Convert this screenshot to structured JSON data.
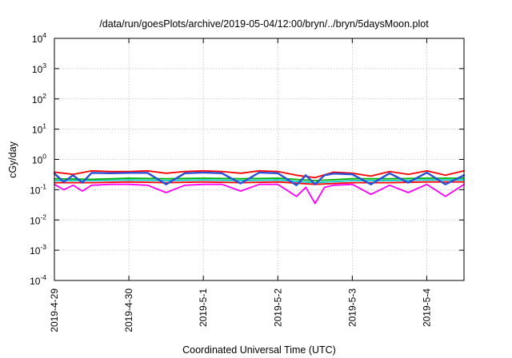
{
  "chart_data": {
    "type": "line",
    "title": "/data/run/goesPlots/archive/2019-05-04/12:00/bryn/../bryn/5daysMoon.plot",
    "xlabel": "Coordinated Universal Time (UTC)",
    "ylabel": "cGy/day",
    "yscale": "log",
    "ylim": [
      0.0001,
      10000
    ],
    "yticks": [
      {
        "value": 10000,
        "base": "10",
        "exp": "4"
      },
      {
        "value": 1000,
        "base": "10",
        "exp": "3"
      },
      {
        "value": 100,
        "base": "10",
        "exp": "2"
      },
      {
        "value": 10,
        "base": "10",
        "exp": "1"
      },
      {
        "value": 1,
        "base": "10",
        "exp": "0"
      },
      {
        "value": 0.1,
        "base": "10",
        "exp": "-1"
      },
      {
        "value": 0.01,
        "base": "10",
        "exp": "-2"
      },
      {
        "value": 0.001,
        "base": "10",
        "exp": "-3"
      },
      {
        "value": 0.0001,
        "base": "10",
        "exp": "-4"
      }
    ],
    "xlim": [
      "2019-04-29",
      "2019-05-04T12:00"
    ],
    "xticks": [
      {
        "value": "2019-04-29",
        "label": "2019-4-29"
      },
      {
        "value": "2019-04-30",
        "label": "2019-4-30"
      },
      {
        "value": "2019-05-01",
        "label": "2019-5-1"
      },
      {
        "value": "2019-05-02",
        "label": "2019-5-2"
      },
      {
        "value": "2019-05-03",
        "label": "2019-5-3"
      },
      {
        "value": "2019-05-04",
        "label": "2019-5-4"
      }
    ],
    "grid": true,
    "legend": "none",
    "series": [
      {
        "color": "#ff00ff",
        "values": [
          [
            "2019-04-29T00:00",
            0.15
          ],
          [
            "2019-04-29T03:00",
            0.1
          ],
          [
            "2019-04-29T06:00",
            0.14
          ],
          [
            "2019-04-29T09:00",
            0.09
          ],
          [
            "2019-04-29T12:00",
            0.14
          ],
          [
            "2019-04-29T18:00",
            0.15
          ],
          [
            "2019-04-30T00:00",
            0.15
          ],
          [
            "2019-04-30T06:00",
            0.14
          ],
          [
            "2019-04-30T12:00",
            0.08
          ],
          [
            "2019-04-30T18:00",
            0.14
          ],
          [
            "2019-05-01T00:00",
            0.15
          ],
          [
            "2019-05-01T06:00",
            0.15
          ],
          [
            "2019-05-01T12:00",
            0.09
          ],
          [
            "2019-05-01T18:00",
            0.15
          ],
          [
            "2019-05-02T00:00",
            0.15
          ],
          [
            "2019-05-02T06:00",
            0.06
          ],
          [
            "2019-05-02T09:00",
            0.12
          ],
          [
            "2019-05-02T12:00",
            0.035
          ],
          [
            "2019-05-02T15:00",
            0.12
          ],
          [
            "2019-05-02T18:00",
            0.14
          ],
          [
            "2019-05-03T00:00",
            0.15
          ],
          [
            "2019-05-03T06:00",
            0.07
          ],
          [
            "2019-05-03T12:00",
            0.14
          ],
          [
            "2019-05-03T18:00",
            0.08
          ],
          [
            "2019-05-04T00:00",
            0.15
          ],
          [
            "2019-05-04T06:00",
            0.06
          ],
          [
            "2019-05-04T12:00",
            0.15
          ]
        ]
      },
      {
        "color": "#ff0000",
        "values": [
          [
            "2019-04-29T00:00",
            0.17
          ],
          [
            "2019-04-29T12:00",
            0.17
          ],
          [
            "2019-04-30T00:00",
            0.18
          ],
          [
            "2019-04-30T12:00",
            0.17
          ],
          [
            "2019-05-01T00:00",
            0.18
          ],
          [
            "2019-05-01T12:00",
            0.17
          ],
          [
            "2019-05-02T00:00",
            0.18
          ],
          [
            "2019-05-02T12:00",
            0.15
          ],
          [
            "2019-05-03T00:00",
            0.17
          ],
          [
            "2019-05-03T12:00",
            0.17
          ],
          [
            "2019-05-04T00:00",
            0.18
          ],
          [
            "2019-05-04T12:00",
            0.18
          ]
        ]
      },
      {
        "color": "#00c8c8",
        "values": [
          [
            "2019-04-29T00:00",
            0.2
          ],
          [
            "2019-04-29T12:00",
            0.2
          ],
          [
            "2019-04-30T00:00",
            0.21
          ],
          [
            "2019-04-30T12:00",
            0.2
          ],
          [
            "2019-05-01T00:00",
            0.21
          ],
          [
            "2019-05-01T12:00",
            0.2
          ],
          [
            "2019-05-02T00:00",
            0.21
          ],
          [
            "2019-05-02T12:00",
            0.17
          ],
          [
            "2019-05-03T00:00",
            0.2
          ],
          [
            "2019-05-03T12:00",
            0.2
          ],
          [
            "2019-05-04T00:00",
            0.21
          ],
          [
            "2019-05-04T12:00",
            0.21
          ]
        ]
      },
      {
        "color": "#00b000",
        "values": [
          [
            "2019-04-29T00:00",
            0.23
          ],
          [
            "2019-04-29T12:00",
            0.22
          ],
          [
            "2019-04-30T00:00",
            0.24
          ],
          [
            "2019-04-30T12:00",
            0.23
          ],
          [
            "2019-05-01T00:00",
            0.24
          ],
          [
            "2019-05-01T12:00",
            0.23
          ],
          [
            "2019-05-02T00:00",
            0.24
          ],
          [
            "2019-05-02T12:00",
            0.2
          ],
          [
            "2019-05-03T00:00",
            0.23
          ],
          [
            "2019-05-03T12:00",
            0.23
          ],
          [
            "2019-05-04T00:00",
            0.24
          ],
          [
            "2019-05-04T12:00",
            0.24
          ]
        ]
      },
      {
        "color": "#ff0000",
        "values": [
          [
            "2019-04-29T00:00",
            0.38
          ],
          [
            "2019-04-29T06:00",
            0.32
          ],
          [
            "2019-04-29T12:00",
            0.42
          ],
          [
            "2019-04-29T18:00",
            0.4
          ],
          [
            "2019-04-30T00:00",
            0.4
          ],
          [
            "2019-04-30T06:00",
            0.42
          ],
          [
            "2019-04-30T12:00",
            0.35
          ],
          [
            "2019-04-30T18:00",
            0.4
          ],
          [
            "2019-05-01T00:00",
            0.42
          ],
          [
            "2019-05-01T06:00",
            0.4
          ],
          [
            "2019-05-01T12:00",
            0.35
          ],
          [
            "2019-05-01T18:00",
            0.42
          ],
          [
            "2019-05-02T00:00",
            0.4
          ],
          [
            "2019-05-02T06:00",
            0.3
          ],
          [
            "2019-05-02T12:00",
            0.25
          ],
          [
            "2019-05-02T18:00",
            0.38
          ],
          [
            "2019-05-03T00:00",
            0.35
          ],
          [
            "2019-05-03T06:00",
            0.28
          ],
          [
            "2019-05-03T12:00",
            0.4
          ],
          [
            "2019-05-03T18:00",
            0.32
          ],
          [
            "2019-05-04T00:00",
            0.42
          ],
          [
            "2019-05-04T06:00",
            0.3
          ],
          [
            "2019-05-04T12:00",
            0.42
          ]
        ]
      },
      {
        "color": "#2b4fd8",
        "values": [
          [
            "2019-04-29T00:00",
            0.34
          ],
          [
            "2019-04-29T03:00",
            0.18
          ],
          [
            "2019-04-29T06:00",
            0.3
          ],
          [
            "2019-04-29T09:00",
            0.17
          ],
          [
            "2019-04-29T12:00",
            0.36
          ],
          [
            "2019-04-29T18:00",
            0.35
          ],
          [
            "2019-04-30T00:00",
            0.36
          ],
          [
            "2019-04-30T06:00",
            0.36
          ],
          [
            "2019-04-30T12:00",
            0.15
          ],
          [
            "2019-04-30T18:00",
            0.35
          ],
          [
            "2019-05-01T00:00",
            0.37
          ],
          [
            "2019-05-01T06:00",
            0.35
          ],
          [
            "2019-05-01T12:00",
            0.16
          ],
          [
            "2019-05-01T18:00",
            0.37
          ],
          [
            "2019-05-02T00:00",
            0.35
          ],
          [
            "2019-05-02T06:00",
            0.14
          ],
          [
            "2019-05-02T09:00",
            0.3
          ],
          [
            "2019-05-02T12:00",
            0.15
          ],
          [
            "2019-05-02T15:00",
            0.3
          ],
          [
            "2019-05-02T18:00",
            0.34
          ],
          [
            "2019-05-03T00:00",
            0.32
          ],
          [
            "2019-05-03T06:00",
            0.15
          ],
          [
            "2019-05-03T12:00",
            0.35
          ],
          [
            "2019-05-03T18:00",
            0.17
          ],
          [
            "2019-05-04T00:00",
            0.37
          ],
          [
            "2019-05-04T06:00",
            0.15
          ],
          [
            "2019-05-04T12:00",
            0.3
          ]
        ]
      }
    ]
  }
}
